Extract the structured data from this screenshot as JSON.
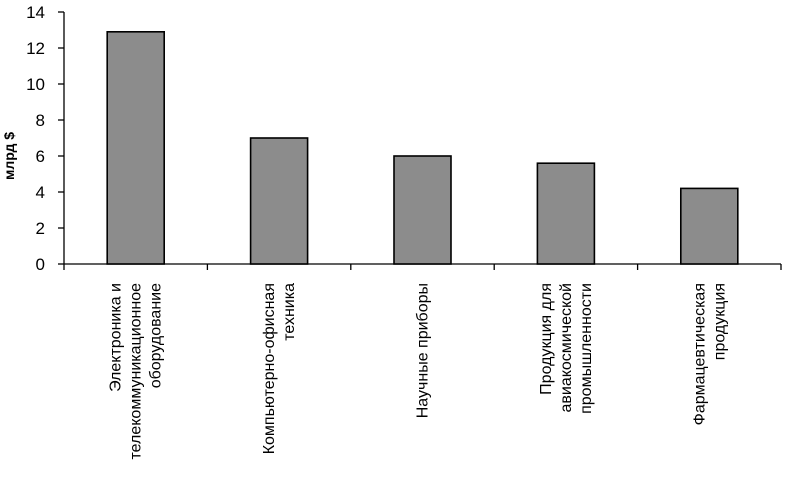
{
  "chart_data": {
    "type": "bar",
    "categories": [
      "Электроника и телекоммуникационное оборудование",
      "Компьютерно-офисная техника",
      "Научные приборы",
      "Продукция для авиакосмической промышленности",
      "Фармацевтическая продукция"
    ],
    "category_lines": [
      [
        "Электроника и",
        "телекоммуникационное",
        "оборудование"
      ],
      [
        "Компьютерно-офисная",
        "техника"
      ],
      [
        "Научные приборы"
      ],
      [
        "Продукция для",
        "авиакосмической",
        "промышленности"
      ],
      [
        "Фармацевтическая",
        "продукция"
      ]
    ],
    "values": [
      12.9,
      7.0,
      6.0,
      5.6,
      4.2
    ],
    "title": "",
    "xlabel": "",
    "ylabel": "млрд $",
    "ylim": [
      0,
      14
    ],
    "yticks": [
      0,
      2,
      4,
      6,
      8,
      10,
      12,
      14
    ],
    "grid": false,
    "bar_color": "#8c8c8c"
  }
}
